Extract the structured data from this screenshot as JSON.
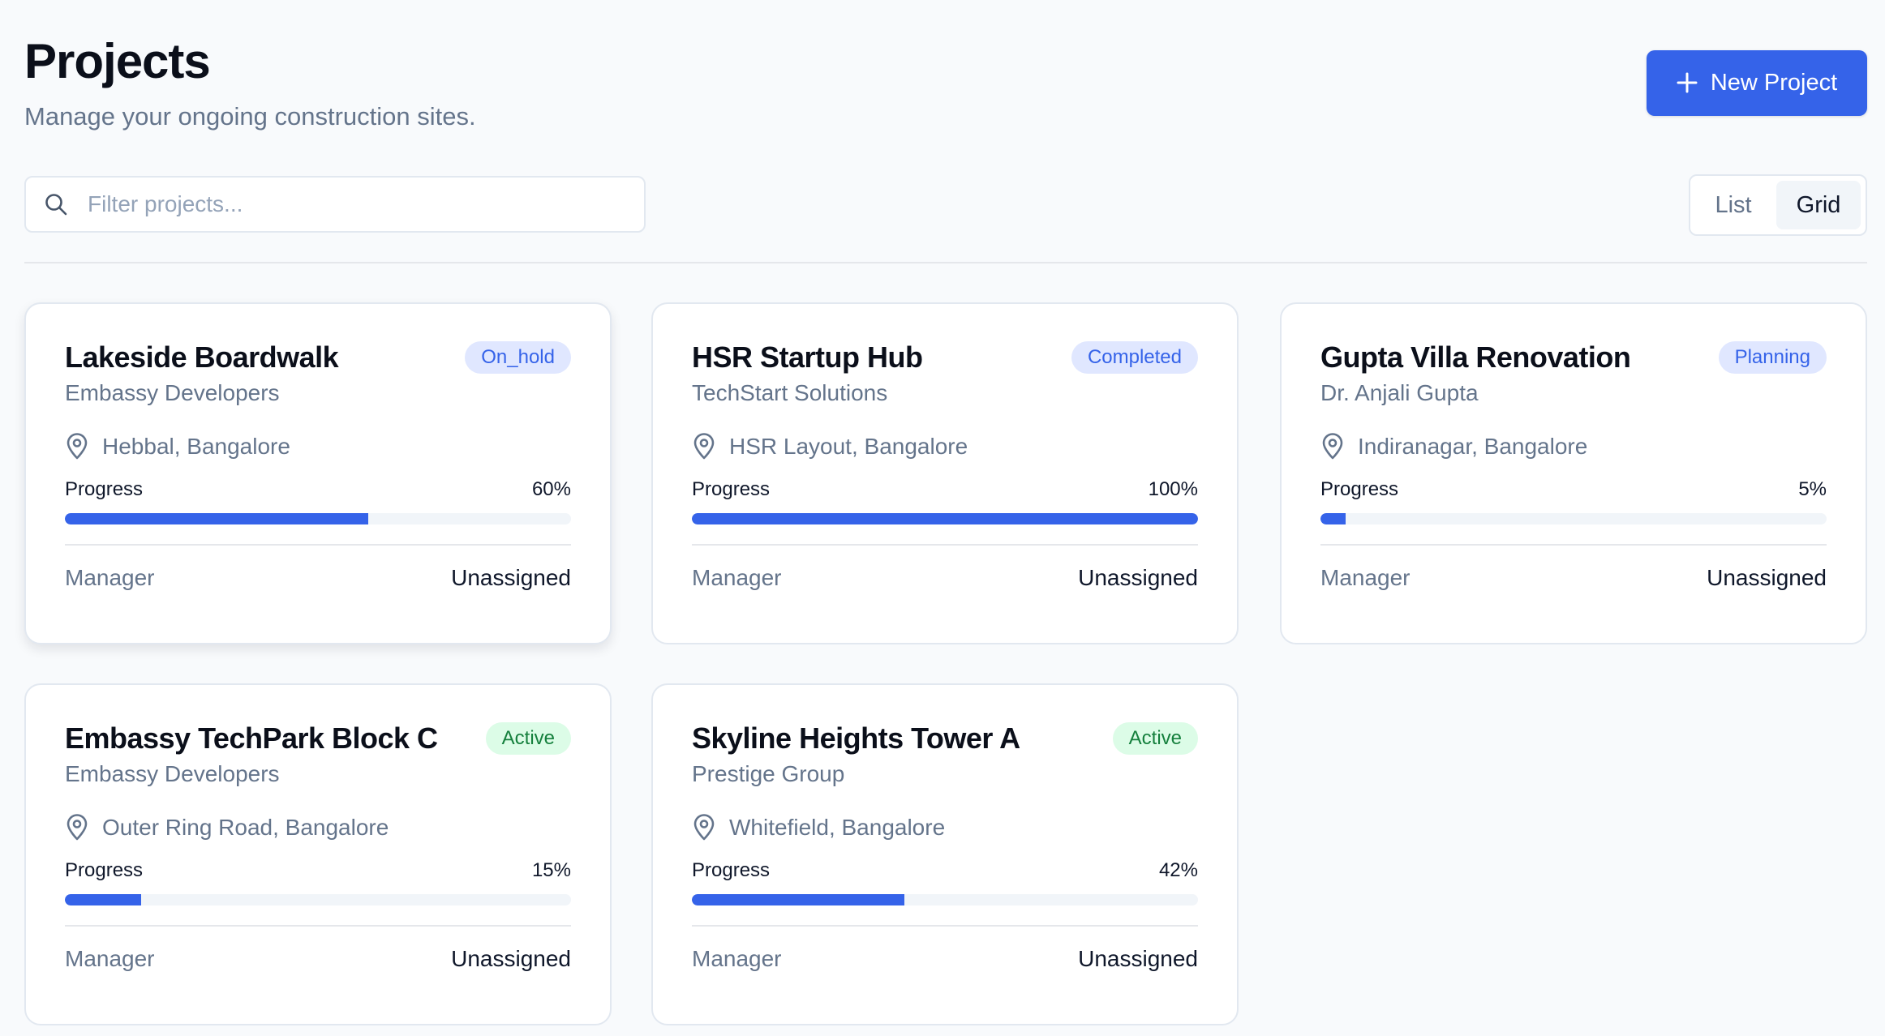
{
  "header": {
    "title": "Projects",
    "subtitle": "Manage your ongoing construction sites.",
    "new_button_label": "New Project"
  },
  "filter": {
    "placeholder": "Filter projects...",
    "value": ""
  },
  "view_toggle": {
    "options": [
      "List",
      "Grid"
    ],
    "selected": "Grid"
  },
  "colors": {
    "accent": "#3563e9",
    "badge_blue_bg": "#e0e7ff",
    "badge_green_bg": "#dcfce7",
    "badge_green_text": "#15803d"
  },
  "icons": {
    "new_button": "plus-icon",
    "filter": "search-icon",
    "location": "map-pin-icon"
  },
  "projects": [
    {
      "name": "Lakeside Boardwalk",
      "client": "Embassy Developers",
      "status": "On_hold",
      "location": "Hebbal, Bangalore",
      "progress_label": "Progress",
      "progress": 60,
      "progress_text": "60%",
      "manager_label": "Manager",
      "manager": "Unassigned"
    },
    {
      "name": "HSR Startup Hub",
      "client": "TechStart Solutions",
      "status": "Completed",
      "location": "HSR Layout, Bangalore",
      "progress_label": "Progress",
      "progress": 100,
      "progress_text": "100%",
      "manager_label": "Manager",
      "manager": "Unassigned"
    },
    {
      "name": "Gupta Villa Renovation",
      "client": "Dr. Anjali Gupta",
      "status": "Planning",
      "location": "Indiranagar, Bangalore",
      "progress_label": "Progress",
      "progress": 5,
      "progress_text": "5%",
      "manager_label": "Manager",
      "manager": "Unassigned"
    },
    {
      "name": "Embassy TechPark Block C",
      "client": "Embassy Developers",
      "status": "Active",
      "location": "Outer Ring Road, Bangalore",
      "progress_label": "Progress",
      "progress": 15,
      "progress_text": "15%",
      "manager_label": "Manager",
      "manager": "Unassigned"
    },
    {
      "name": "Skyline Heights Tower A",
      "client": "Prestige Group",
      "status": "Active",
      "location": "Whitefield, Bangalore",
      "progress_label": "Progress",
      "progress": 42,
      "progress_text": "42%",
      "manager_label": "Manager",
      "manager": "Unassigned"
    }
  ]
}
